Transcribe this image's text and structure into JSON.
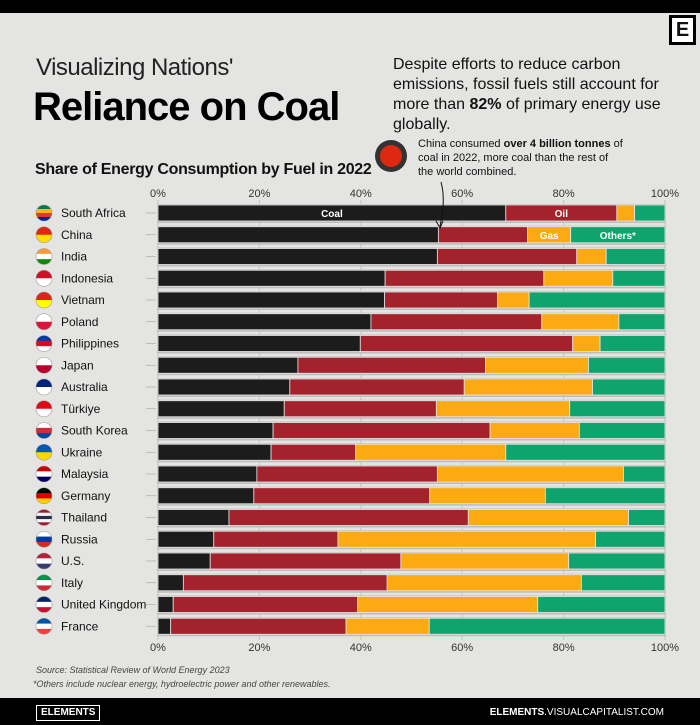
{
  "header": {
    "kicker": "Visualizing Nations'",
    "title": "Reliance on Coal",
    "intro_a": "Despite efforts to reduce carbon emissions, fossil fuels still account for more than ",
    "intro_bold": "82%",
    "intro_b": " of primary energy use globally.",
    "logo": "E"
  },
  "annotation": {
    "a": "China consumed ",
    "bold": "over 4 billion tonnes",
    "b": " of coal in 2022, more coal than the rest of the world combined."
  },
  "chart_data": {
    "type": "bar",
    "orientation": "horizontal",
    "stacked": true,
    "title": "Share of Energy Consumption by Fuel in 2022",
    "xlim": [
      0,
      100
    ],
    "x_ticks": [
      "0%",
      "20%",
      "40%",
      "60%",
      "80%",
      "100%"
    ],
    "grid": true,
    "categories": [
      "South Africa",
      "China",
      "India",
      "Indonesia",
      "Vietnam",
      "Poland",
      "Philippines",
      "Japan",
      "Australia",
      "Türkiye",
      "South Korea",
      "Ukraine",
      "Malaysia",
      "Germany",
      "Thailand",
      "Russia",
      "U.S.",
      "Italy",
      "United Kingdom",
      "France"
    ],
    "series": [
      {
        "name": "Coal",
        "color": "#1c1c1c",
        "values": [
          68.6,
          55.3,
          55.1,
          44.8,
          44.7,
          42.0,
          39.9,
          27.6,
          26.0,
          24.9,
          22.7,
          22.3,
          19.5,
          18.9,
          14.0,
          11.0,
          10.3,
          5.0,
          3.0,
          2.5
        ]
      },
      {
        "name": "Oil",
        "color": "#a3222b",
        "values": [
          21.9,
          17.6,
          27.5,
          31.3,
          22.3,
          33.7,
          41.9,
          37.0,
          34.4,
          30.0,
          42.8,
          16.7,
          35.6,
          34.7,
          47.2,
          24.5,
          37.6,
          40.2,
          36.4,
          34.6
        ]
      },
      {
        "name": "Gas",
        "color": "#fbaa12",
        "values": [
          3.5,
          8.5,
          5.8,
          13.6,
          6.2,
          15.2,
          5.4,
          20.3,
          25.3,
          26.3,
          17.6,
          29.6,
          36.7,
          22.8,
          31.6,
          50.8,
          33.1,
          38.3,
          35.5,
          16.4
        ]
      },
      {
        "name": "Others*",
        "color": "#0fa36d",
        "values": [
          6.0,
          18.6,
          11.6,
          10.3,
          26.8,
          9.1,
          12.8,
          15.1,
          14.3,
          18.8,
          16.9,
          31.4,
          8.2,
          23.6,
          7.2,
          13.7,
          19.0,
          16.5,
          25.1,
          46.5
        ]
      }
    ],
    "flags": [
      [
        "#007a4d",
        "#ffb612",
        "#de3831",
        "#002395"
      ],
      [
        "#de2910",
        "#ffde00"
      ],
      [
        "#ff9933",
        "#ffffff",
        "#138808"
      ],
      [
        "#ce1126",
        "#ffffff"
      ],
      [
        "#da251d",
        "#ffff00"
      ],
      [
        "#ffffff",
        "#dc143c"
      ],
      [
        "#0038a8",
        "#ce1126",
        "#ffffff"
      ],
      [
        "#ffffff",
        "#bc002d"
      ],
      [
        "#00247d",
        "#ffffff"
      ],
      [
        "#e30a17",
        "#ffffff"
      ],
      [
        "#ffffff",
        "#cd2e3a",
        "#0047a0"
      ],
      [
        "#0057b7",
        "#ffd700"
      ],
      [
        "#cc0001",
        "#ffffff",
        "#010066"
      ],
      [
        "#000000",
        "#dd0000",
        "#ffce00"
      ],
      [
        "#a51931",
        "#f4f5f8",
        "#2d2a4a",
        "#f4f5f8",
        "#a51931"
      ],
      [
        "#ffffff",
        "#0039a6",
        "#d52b1e"
      ],
      [
        "#b22234",
        "#ffffff",
        "#3c3b6e"
      ],
      [
        "#009246",
        "#ffffff",
        "#ce2b37"
      ],
      [
        "#012169",
        "#ffffff",
        "#c8102e"
      ],
      [
        "#0055a4",
        "#ffffff",
        "#ef4135"
      ]
    ]
  },
  "footer": {
    "source": "Source: Statistical Review of World Energy 2023",
    "footnote": "*Others include nuclear energy, hydroelectric power and other renewables.",
    "brand": "ELEMENTS",
    "url_bold": "ELEMENTS",
    "url_rest": ".VISUALCAPITALIST.COM"
  }
}
